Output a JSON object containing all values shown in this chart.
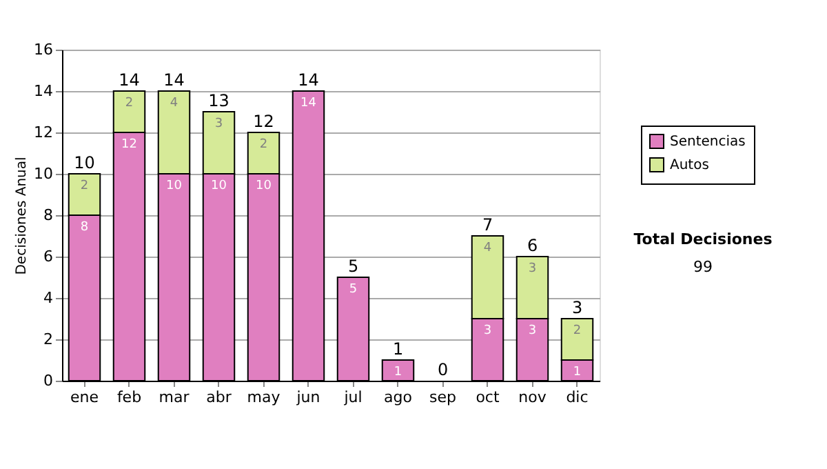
{
  "chart_data": {
    "type": "bar",
    "stacked": true,
    "ylabel": "Decisiones Anual",
    "categories": [
      "ene",
      "feb",
      "mar",
      "abr",
      "may",
      "jun",
      "jul",
      "ago",
      "sep",
      "oct",
      "nov",
      "dic"
    ],
    "series": [
      {
        "name": "Sentencias",
        "color": "#e07fc0",
        "values": [
          8,
          12,
          10,
          10,
          10,
          14,
          5,
          1,
          0,
          3,
          3,
          1
        ],
        "value_labels": [
          "8",
          "12",
          "10",
          "10",
          "10",
          "14",
          "5",
          "1",
          null,
          "3",
          "3",
          "1"
        ]
      },
      {
        "name": "Autos",
        "color": "#d6ea98",
        "values": [
          2,
          2,
          4,
          3,
          2,
          0,
          0,
          0,
          0,
          4,
          3,
          2
        ],
        "value_labels": [
          "2",
          "2",
          "4",
          "3",
          "2",
          null,
          null,
          null,
          null,
          "4",
          "3",
          "2"
        ]
      }
    ],
    "totals": [
      "10",
      "14",
      "14",
      "13",
      "12",
      "14",
      "5",
      "1",
      "0",
      "7",
      "6",
      "3"
    ],
    "ylim": [
      0,
      16
    ],
    "yticks": [
      0,
      2,
      4,
      6,
      8,
      10,
      12,
      14,
      16
    ],
    "grid": "y",
    "legend": "right",
    "annotations": [
      "Total Decisiones",
      "99"
    ]
  }
}
